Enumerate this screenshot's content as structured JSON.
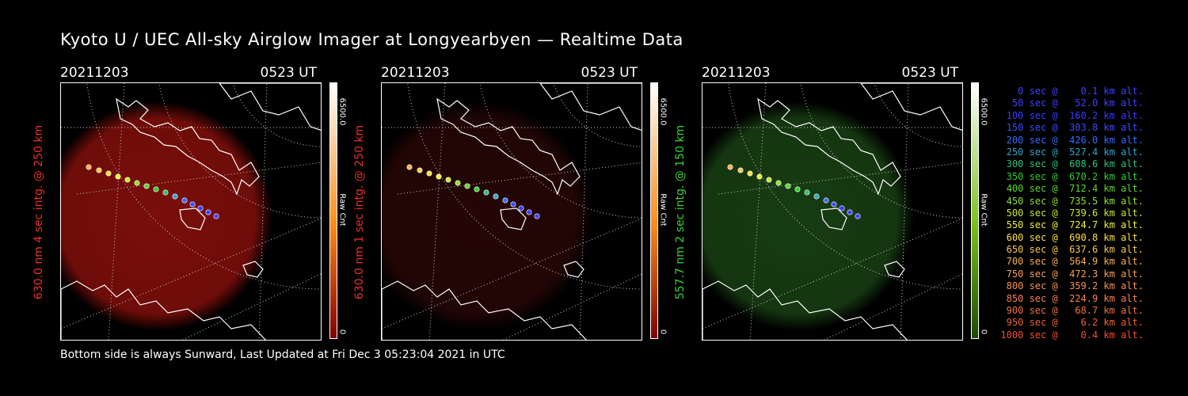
{
  "title": "Kyoto U / UEC All-sky Airglow Imager at Longyearbyen — Realtime Data",
  "footer": "Bottom side is always Sunward, Last Updated at Fri Dec  3 05:23:04 2021 in UTC",
  "panels": [
    {
      "date": "20211203",
      "time": "0523 UT",
      "side_label": "630.0 nm 4 sec intg. @ 250 km",
      "label_color": "#e8302a",
      "cbar_max": "6500.0",
      "cbar_unit": "Raw Cnt",
      "cbar_min": "0",
      "glow_color": "#7a0e0a",
      "cbar_top": "#ffffff",
      "cbar_mid": "#ff8c1a",
      "cbar_bot": "#800000"
    },
    {
      "date": "20211203",
      "time": "0523 UT",
      "side_label": "630.0 nm 1 sec intg. @ 250 km",
      "label_color": "#e8302a",
      "cbar_max": "6500.0",
      "cbar_unit": "Raw Cnt",
      "cbar_min": "0",
      "glow_color": "#240605",
      "cbar_top": "#ffffff",
      "cbar_mid": "#ff8c1a",
      "cbar_bot": "#800000"
    },
    {
      "date": "20211203",
      "time": "0523 UT",
      "side_label": "557.7 nm 2 sec intg. @ 150 km",
      "label_color": "#3ad13a",
      "cbar_max": "6500.0",
      "cbar_unit": "Raw Cnt",
      "cbar_min": "0",
      "glow_color": "#173c12",
      "cbar_top": "#ffffff",
      "cbar_mid": "#7ac21e",
      "cbar_bot": "#1c4a00"
    }
  ],
  "legend": [
    {
      "text": "   0 sec @    0.1 km alt.",
      "color": "#4040ff"
    },
    {
      "text": "  50 sec @   52.0 km alt.",
      "color": "#4040ff"
    },
    {
      "text": " 100 sec @  160.2 km alt.",
      "color": "#3a3aff"
    },
    {
      "text": " 150 sec @  303.8 km alt.",
      "color": "#3a4cff"
    },
    {
      "text": " 200 sec @  426.0 km alt.",
      "color": "#3a6aff"
    },
    {
      "text": " 250 sec @  527.4 km alt.",
      "color": "#2fa6c8"
    },
    {
      "text": " 300 sec @  608.6 km alt.",
      "color": "#2ec07a"
    },
    {
      "text": " 350 sec @  670.2 km alt.",
      "color": "#2ed02e"
    },
    {
      "text": " 400 sec @  712.4 km alt.",
      "color": "#5ad82e"
    },
    {
      "text": " 450 sec @  735.5 km alt.",
      "color": "#8ee02e"
    },
    {
      "text": " 500 sec @  739.6 km alt.",
      "color": "#c8e82e"
    },
    {
      "text": " 550 sec @  724.7 km alt.",
      "color": "#f0f02e"
    },
    {
      "text": " 600 sec @  690.8 km alt.",
      "color": "#f8e040"
    },
    {
      "text": " 650 sec @  637.6 km alt.",
      "color": "#f8c850"
    },
    {
      "text": " 700 sec @  564.9 km alt.",
      "color": "#f8b050"
    },
    {
      "text": " 750 sec @  472.3 km alt.",
      "color": "#f8a050"
    },
    {
      "text": " 800 sec @  359.2 km alt.",
      "color": "#f89050"
    },
    {
      "text": " 850 sec @  224.9 km alt.",
      "color": "#f88050"
    },
    {
      "text": " 900 sec @   68.7 km alt.",
      "color": "#f07040"
    },
    {
      "text": " 950 sec @    6.2 km alt.",
      "color": "#f06030"
    },
    {
      "text": "1000 sec @    0.4 km alt.",
      "color": "#f05030"
    }
  ]
}
